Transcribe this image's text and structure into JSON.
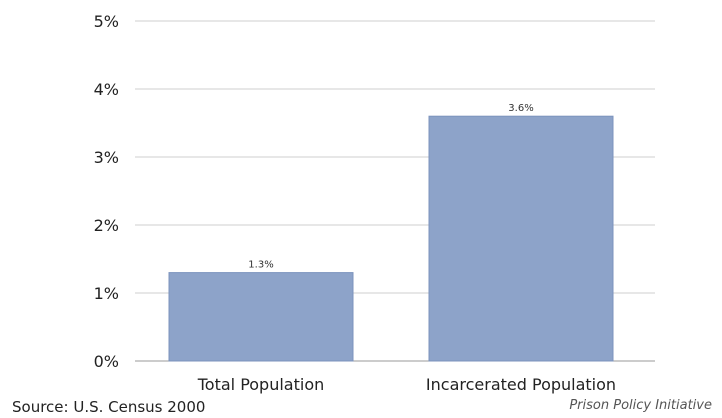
{
  "chart_data": {
    "type": "bar",
    "categories": [
      "Total Population",
      "Incarcerated Population"
    ],
    "values": [
      1.3,
      3.6
    ],
    "value_labels": [
      "1.3%",
      "3.6%"
    ],
    "ylim": [
      0,
      5
    ],
    "yticks": [
      0,
      1,
      2,
      3,
      4,
      5
    ],
    "ytick_labels": [
      "0%",
      "1%",
      "2%",
      "3%",
      "4%",
      "5%"
    ],
    "grid": true,
    "bar_color": "#8da3c9",
    "bar_edge_color": "#7c93bd"
  },
  "footer": {
    "source": "Source: U.S. Census 2000",
    "credit": "Prison Policy Initiative"
  }
}
